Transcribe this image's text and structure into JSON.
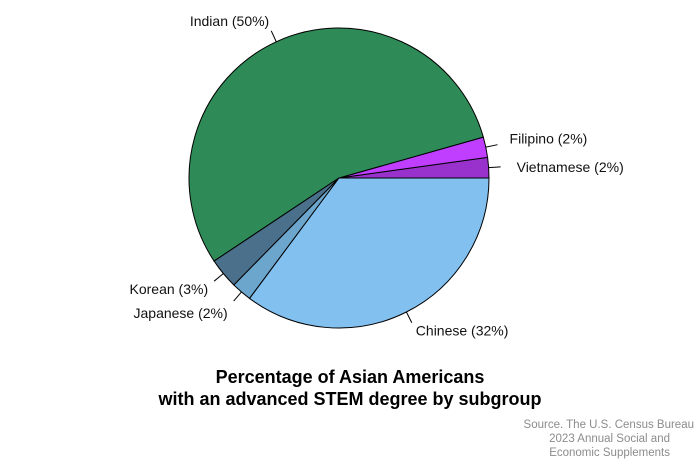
{
  "chart_data": {
    "type": "pie",
    "title_lines": [
      "Percentage of Asian Americans",
      "with an advanced STEM degree by subgroup"
    ],
    "start": "3 o'clock",
    "direction": "counterclockwise",
    "slices": [
      {
        "label": "Vietnamese (2%)",
        "category": "Vietnamese",
        "value": 2,
        "color": "#9932CC"
      },
      {
        "label": "Filipino (2%)",
        "category": "Filipino",
        "value": 2,
        "color": "#BF3EFF"
      },
      {
        "label": "Indian (50%)",
        "category": "Indian",
        "value": 50,
        "color": "#2E8B57"
      },
      {
        "label": "Korean (3%)",
        "category": "Korean",
        "value": 3,
        "color": "#4A708B"
      },
      {
        "label": "Japanese (2%)",
        "category": "Japanese",
        "value": 2,
        "color": "#6CA6CD"
      },
      {
        "label": "Chinese (32%)",
        "category": "Chinese",
        "value": 32,
        "color": "#82C0F0"
      }
    ]
  },
  "source": {
    "lines": [
      "Source. The U.S. Census Bureau",
      "2023 Annual Social and",
      "Economic Supplements"
    ]
  }
}
